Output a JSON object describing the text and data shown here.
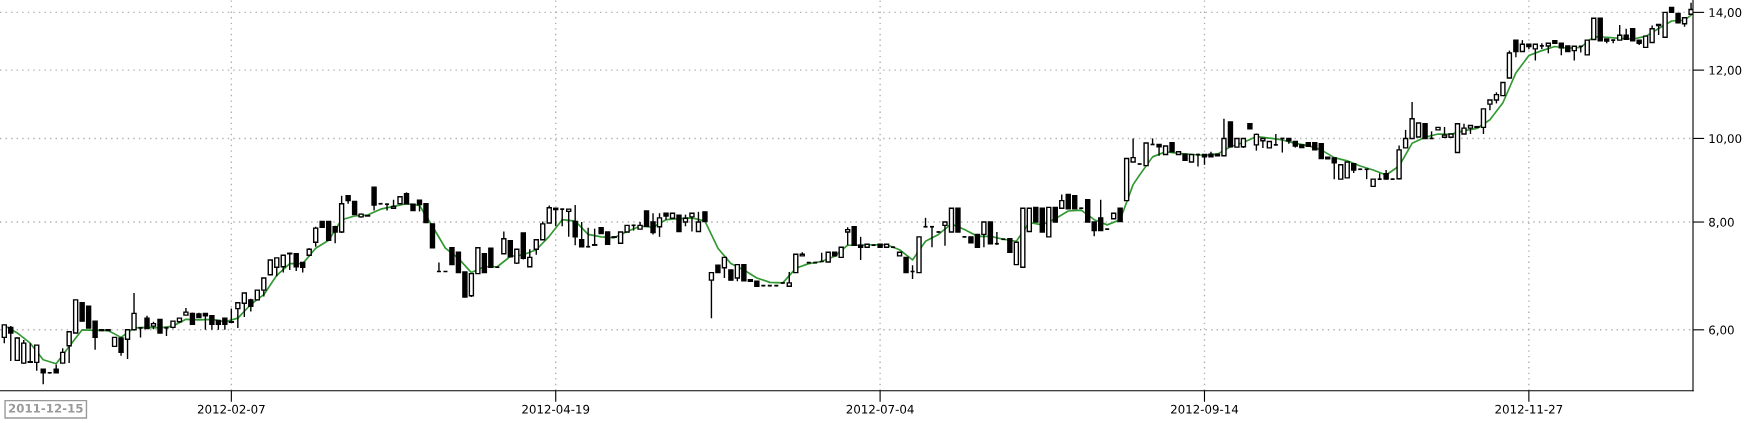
{
  "chart_data": {
    "type": "candlestick",
    "log": "y",
    "grid": true,
    "categories": [
      null,
      null,
      null,
      null,
      null,
      null,
      null,
      null,
      null,
      null,
      null,
      null,
      null,
      null,
      null,
      null,
      null,
      null,
      null,
      null,
      null,
      null,
      null,
      null,
      null,
      null,
      null,
      null,
      null,
      null,
      null,
      null,
      null,
      null,
      null,
      "2012-02-07",
      null,
      null,
      null,
      null,
      null,
      null,
      null,
      null,
      null,
      null,
      null,
      null,
      null,
      null,
      null,
      null,
      null,
      null,
      null,
      null,
      null,
      null,
      null,
      null,
      null,
      null,
      null,
      null,
      null,
      null,
      null,
      null,
      null,
      null,
      null,
      null,
      null,
      null,
      null,
      null,
      null,
      null,
      null,
      null,
      null,
      null,
      null,
      null,
      null,
      "2012-04-19",
      null,
      null,
      null,
      null,
      null,
      null,
      null,
      null,
      null,
      null,
      null,
      null,
      null,
      null,
      null,
      null,
      null,
      null,
      null,
      null,
      null,
      null,
      null,
      null,
      null,
      null,
      null,
      null,
      null,
      null,
      null,
      null,
      null,
      null,
      null,
      null,
      null,
      null,
      null,
      null,
      null,
      null,
      null,
      null,
      null,
      null,
      null,
      null,
      null,
      "2012-07-04",
      null,
      null,
      null,
      null,
      null,
      null,
      null,
      null,
      null,
      null,
      null,
      null,
      null,
      null,
      null,
      null,
      null,
      null,
      null,
      null,
      null,
      null,
      null,
      null,
      null,
      null,
      null,
      null,
      null,
      null,
      null,
      null,
      null,
      null,
      null,
      null,
      null,
      null,
      null,
      null,
      null,
      null,
      null,
      null,
      null,
      null,
      null,
      null,
      null,
      "2012-09-14",
      null,
      null,
      null,
      null,
      null,
      null,
      null,
      null,
      null,
      null,
      null,
      null,
      null,
      null,
      null,
      null,
      null,
      null,
      null,
      null,
      null,
      null,
      null,
      null,
      null,
      null,
      null,
      null,
      null,
      null,
      null,
      null,
      null,
      null,
      null,
      null,
      null,
      null,
      null,
      null,
      null,
      null,
      null,
      null,
      null,
      null,
      null,
      null,
      null,
      "2012-11-27",
      null,
      null,
      null,
      null,
      null,
      null,
      null,
      null,
      null,
      null,
      null,
      null,
      null,
      null,
      null,
      null,
      null,
      null,
      null,
      null,
      null,
      null,
      null,
      null,
      null
    ],
    "ylim": [
      5.1,
      14.47
    ],
    "yticks": [
      {
        "value": 6,
        "label": "6,00"
      },
      {
        "value": 8,
        "label": "8,00"
      },
      {
        "value": 10,
        "label": "10,00"
      },
      {
        "value": 12,
        "label": "12,00"
      },
      {
        "value": 14,
        "label": "14,00"
      }
    ],
    "annotations": [
      "2011-12-15"
    ],
    "series": [
      {
        "color": "#000000",
        "ohlc": [
          [
            5.88,
            6.08,
            5.79,
            6.08
          ],
          [
            6.04,
            6.06,
            5.52,
            5.95
          ],
          [
            5.53,
            5.88,
            5.52,
            5.87
          ],
          [
            5.49,
            5.84,
            5.48,
            5.79
          ],
          [
            5.5,
            5.79,
            5.49,
            5.51
          ],
          [
            5.5,
            5.76,
            5.38,
            5.76
          ],
          [
            5.4,
            5.4,
            5.19,
            5.35
          ],
          [
            5.35,
            5.36,
            5.34,
            5.35
          ],
          [
            5.4,
            5.47,
            5.35,
            5.35
          ],
          [
            5.49,
            5.71,
            5.49,
            5.65
          ],
          [
            5.75,
            5.97,
            5.49,
            5.97
          ],
          [
            5.95,
            6.5,
            5.95,
            6.5
          ],
          [
            6.45,
            6.45,
            6.14,
            6.14
          ],
          [
            6.39,
            6.39,
            6.03,
            6.03
          ],
          [
            6.14,
            6.14,
            5.69,
            5.88
          ],
          [
            6.0,
            6.0,
            5.99,
            5.99
          ],
          [
            5.99,
            6.0,
            5.99,
            6.0
          ],
          [
            5.74,
            5.88,
            5.74,
            5.88
          ],
          [
            5.87,
            5.87,
            5.6,
            5.65
          ],
          [
            5.85,
            6.0,
            5.55,
            6.0
          ],
          [
            6.0,
            6.62,
            6.0,
            6.27
          ],
          [
            6.03,
            6.04,
            5.88,
            6.03
          ],
          [
            6.19,
            6.23,
            6.02,
            6.02
          ],
          [
            6.06,
            6.13,
            6.01,
            6.1
          ],
          [
            6.17,
            6.17,
            5.95,
            5.95
          ],
          [
            6.03,
            6.04,
            5.9,
            6.03
          ],
          [
            6.04,
            6.14,
            6.02,
            6.14
          ],
          [
            6.13,
            6.19,
            6.12,
            6.19
          ],
          [
            6.24,
            6.36,
            6.24,
            6.29
          ],
          [
            6.27,
            6.28,
            6.09,
            6.09
          ],
          [
            6.26,
            6.28,
            6.2,
            6.2
          ],
          [
            6.27,
            6.27,
            6.0,
            6.23
          ],
          [
            6.23,
            6.23,
            6.0,
            6.09
          ],
          [
            6.15,
            6.15,
            6.0,
            6.09
          ],
          [
            6.19,
            6.19,
            6.0,
            6.09
          ],
          [
            6.12,
            6.35,
            6.12,
            6.13
          ],
          [
            6.35,
            6.45,
            6.03,
            6.45
          ],
          [
            6.44,
            6.62,
            6.21,
            6.62
          ],
          [
            6.5,
            6.52,
            6.3,
            6.39
          ],
          [
            6.5,
            6.67,
            6.5,
            6.67
          ],
          [
            6.67,
            6.89,
            6.56,
            6.89
          ],
          [
            6.95,
            7.23,
            6.95,
            7.23
          ],
          [
            7.09,
            7.27,
            6.92,
            7.27
          ],
          [
            7.1,
            7.32,
            6.99,
            7.32
          ],
          [
            7.36,
            7.37,
            7.04,
            7.35
          ],
          [
            7.35,
            7.35,
            7.02,
            7.1
          ],
          [
            7.18,
            7.18,
            6.99,
            7.09
          ],
          [
            7.32,
            7.46,
            7.3,
            7.44
          ],
          [
            7.58,
            7.9,
            7.49,
            7.87
          ],
          [
            8.01,
            8.01,
            7.89,
            7.89
          ],
          [
            8.01,
            8.01,
            7.62,
            7.62
          ],
          [
            7.9,
            7.92,
            7.56,
            7.79
          ],
          [
            7.79,
            8.58,
            7.77,
            8.4
          ],
          [
            8.58,
            8.58,
            8.4,
            8.47
          ],
          [
            8.45,
            8.45,
            8.16,
            8.16
          ],
          [
            8.11,
            8.18,
            8.1,
            8.17
          ],
          [
            8.14,
            8.15,
            8.13,
            8.13
          ],
          [
            8.78,
            8.78,
            8.25,
            8.37
          ],
          [
            8.4,
            8.41,
            8.39,
            8.4
          ],
          [
            8.39,
            8.4,
            8.25,
            8.39
          ],
          [
            8.3,
            8.49,
            8.3,
            8.34
          ],
          [
            8.4,
            8.57,
            8.4,
            8.56
          ],
          [
            8.63,
            8.66,
            8.4,
            8.4
          ],
          [
            8.39,
            8.39,
            8.25,
            8.25
          ],
          [
            8.48,
            8.48,
            8.23,
            8.38
          ],
          [
            8.4,
            8.4,
            7.99,
            7.99
          ],
          [
            7.96,
            7.96,
            7.47,
            7.47
          ],
          [
            7.01,
            7.18,
            7.0,
            7.01
          ],
          [
            7.01,
            7.02,
            7.0,
            7.01
          ],
          [
            7.47,
            7.47,
            7.14,
            7.14
          ],
          [
            7.38,
            7.38,
            6.99,
            6.99
          ],
          [
            7.0,
            7.0,
            6.55,
            6.55
          ],
          [
            6.57,
            6.97,
            6.55,
            6.97
          ],
          [
            6.97,
            7.47,
            6.97,
            7.47
          ],
          [
            7.35,
            7.35,
            6.99,
            6.99
          ],
          [
            7.46,
            7.46,
            7.09,
            7.09
          ],
          [
            7.09,
            7.1,
            7.08,
            7.09
          ],
          [
            7.35,
            7.8,
            7.35,
            7.65
          ],
          [
            7.61,
            7.61,
            7.29,
            7.29
          ],
          [
            7.17,
            7.44,
            7.15,
            7.44
          ],
          [
            7.77,
            7.77,
            7.24,
            7.26
          ],
          [
            7.1,
            7.44,
            7.1,
            7.28
          ],
          [
            7.44,
            7.63,
            7.33,
            7.63
          ],
          [
            7.63,
            8.01,
            7.63,
            7.96
          ],
          [
            7.98,
            8.36,
            7.98,
            8.31
          ],
          [
            8.3,
            8.3,
            7.91,
            8.27
          ],
          [
            8.28,
            8.29,
            7.91,
            8.28
          ],
          [
            8.23,
            8.28,
            7.69,
            8.28
          ],
          [
            8.01,
            8.37,
            7.52,
            7.69
          ],
          [
            7.63,
            8.0,
            7.49,
            7.49
          ],
          [
            7.49,
            7.88,
            7.48,
            7.49
          ],
          [
            7.53,
            7.86,
            7.52,
            7.52
          ],
          [
            7.88,
            7.89,
            7.76,
            7.76
          ],
          [
            7.79,
            7.79,
            7.54,
            7.54
          ],
          [
            7.69,
            7.69,
            7.68,
            7.68
          ],
          [
            7.56,
            7.79,
            7.56,
            7.79
          ],
          [
            7.79,
            7.93,
            7.79,
            7.93
          ],
          [
            7.93,
            7.94,
            7.82,
            7.93
          ],
          [
            7.85,
            8.0,
            7.85,
            7.93
          ],
          [
            8.24,
            8.24,
            7.91,
            7.91
          ],
          [
            8.0,
            8.19,
            7.74,
            7.78
          ],
          [
            7.9,
            8.19,
            7.69,
            8.09
          ],
          [
            8.19,
            8.19,
            8.05,
            8.13
          ],
          [
            8.08,
            8.19,
            8.08,
            8.19
          ],
          [
            8.15,
            8.15,
            7.8,
            7.8
          ],
          [
            8.0,
            8.16,
            7.91,
            8.08
          ],
          [
            8.11,
            8.19,
            7.8,
            8.19
          ],
          [
            7.8,
            8.22,
            7.8,
            8.0
          ],
          [
            8.22,
            8.22,
            8.01,
            8.01
          ],
          [
            6.85,
            6.99,
            6.19,
            6.99
          ],
          [
            7.13,
            7.13,
            6.99,
            6.99
          ],
          [
            7.08,
            7.28,
            6.89,
            7.28
          ],
          [
            7.04,
            7.04,
            6.85,
            6.85
          ],
          [
            6.89,
            7.14,
            6.83,
            7.14
          ],
          [
            7.14,
            7.14,
            6.84,
            6.84
          ],
          [
            6.86,
            6.86,
            6.83,
            6.83
          ],
          [
            6.83,
            6.83,
            6.74,
            6.74
          ],
          [
            6.75,
            6.76,
            6.74,
            6.75
          ],
          [
            6.75,
            6.76,
            6.74,
            6.75
          ],
          [
            6.75,
            6.76,
            6.74,
            6.75
          ],
          [
            6.8,
            6.81,
            6.79,
            6.8
          ],
          [
            6.74,
            7.0,
            6.74,
            6.8
          ],
          [
            6.99,
            7.34,
            6.99,
            7.34
          ],
          [
            7.31,
            7.38,
            7.31,
            7.34
          ],
          [
            7.18,
            7.19,
            7.17,
            7.18
          ],
          [
            7.18,
            7.19,
            7.17,
            7.18
          ],
          [
            7.2,
            7.37,
            7.19,
            7.2
          ],
          [
            7.19,
            7.38,
            7.19,
            7.38
          ],
          [
            7.38,
            7.38,
            7.31,
            7.31
          ],
          [
            7.28,
            7.48,
            7.28,
            7.48
          ],
          [
            7.79,
            7.89,
            7.52,
            7.84
          ],
          [
            7.9,
            7.9,
            7.52,
            7.52
          ],
          [
            7.52,
            7.69,
            7.23,
            7.48
          ],
          [
            7.48,
            7.54,
            7.48,
            7.54
          ],
          [
            7.52,
            7.53,
            7.51,
            7.52
          ],
          [
            7.54,
            7.54,
            7.48,
            7.48
          ],
          [
            7.48,
            7.54,
            7.48,
            7.54
          ],
          [
            7.48,
            7.49,
            7.47,
            7.48
          ],
          [
            7.31,
            7.38,
            7.31,
            7.38
          ],
          [
            7.28,
            7.28,
            6.99,
            6.99
          ],
          [
            7.01,
            7.13,
            6.87,
            7.01
          ],
          [
            6.99,
            7.69,
            6.99,
            7.69
          ],
          [
            7.9,
            8.09,
            7.89,
            7.9
          ],
          [
            7.9,
            7.91,
            7.48,
            7.9
          ],
          [
            7.79,
            7.8,
            7.78,
            7.79
          ],
          [
            7.93,
            8.0,
            7.51,
            8.0
          ],
          [
            7.79,
            8.3,
            7.79,
            8.3
          ],
          [
            8.3,
            8.3,
            7.79,
            7.79
          ],
          [
            7.69,
            7.7,
            7.68,
            7.69
          ],
          [
            7.69,
            7.69,
            7.57,
            7.57
          ],
          [
            7.74,
            7.74,
            7.48,
            7.48
          ],
          [
            7.74,
            8.0,
            7.48,
            8.0
          ],
          [
            8.0,
            8.0,
            7.55,
            7.55
          ],
          [
            7.55,
            7.79,
            7.53,
            7.55
          ],
          [
            7.64,
            7.65,
            7.63,
            7.64
          ],
          [
            7.65,
            7.65,
            7.38,
            7.38
          ],
          [
            7.14,
            7.58,
            7.14,
            7.58
          ],
          [
            7.09,
            8.3,
            7.09,
            8.3
          ],
          [
            7.8,
            8.3,
            7.8,
            8.3
          ],
          [
            8.32,
            8.32,
            8.0,
            8.0
          ],
          [
            8.3,
            8.3,
            7.79,
            7.79
          ],
          [
            7.69,
            8.32,
            7.69,
            8.32
          ],
          [
            8.32,
            8.32,
            8.0,
            8.0
          ],
          [
            8.3,
            8.61,
            8.3,
            8.47
          ],
          [
            8.61,
            8.61,
            8.29,
            8.29
          ],
          [
            8.58,
            8.58,
            8.29,
            8.29
          ],
          [
            8.3,
            8.31,
            8.29,
            8.3
          ],
          [
            8.49,
            8.49,
            8.0,
            8.0
          ],
          [
            8.0,
            8.0,
            7.7,
            7.82
          ],
          [
            8.09,
            8.49,
            7.82,
            7.82
          ],
          [
            7.85,
            7.86,
            7.84,
            7.85
          ],
          [
            8.07,
            8.19,
            8.07,
            8.19
          ],
          [
            8.3,
            8.3,
            8.01,
            8.01
          ],
          [
            8.47,
            9.48,
            8.47,
            9.48
          ],
          [
            9.39,
            10.0,
            9.39,
            9.5
          ],
          [
            9.34,
            9.35,
            9.33,
            9.34
          ],
          [
            9.3,
            9.88,
            9.29,
            9.88
          ],
          [
            9.84,
            10.0,
            9.83,
            9.84
          ],
          [
            9.84,
            9.84,
            9.55,
            9.78
          ],
          [
            9.58,
            9.8,
            9.58,
            9.8
          ],
          [
            9.89,
            9.89,
            9.65,
            9.65
          ],
          [
            9.58,
            9.65,
            9.58,
            9.65
          ],
          [
            9.59,
            9.59,
            9.43,
            9.43
          ],
          [
            9.39,
            9.58,
            9.39,
            9.58
          ],
          [
            9.58,
            9.59,
            9.28,
            9.58
          ],
          [
            9.58,
            9.58,
            9.32,
            9.52
          ],
          [
            9.59,
            9.65,
            9.52,
            9.52
          ],
          [
            9.59,
            9.59,
            9.55,
            9.55
          ],
          [
            9.55,
            10.54,
            9.55,
            10.0
          ],
          [
            10.45,
            10.45,
            9.78,
            9.78
          ],
          [
            9.77,
            10.0,
            9.77,
            10.0
          ],
          [
            9.78,
            10.0,
            9.75,
            10.0
          ],
          [
            10.4,
            10.4,
            10.26,
            10.26
          ],
          [
            9.83,
            10.13,
            9.68,
            10.11
          ],
          [
            9.94,
            10.0,
            9.75,
            10.0
          ],
          [
            9.75,
            9.92,
            9.75,
            9.92
          ],
          [
            9.83,
            10.12,
            9.82,
            9.83
          ],
          [
            10.0,
            10.01,
            9.63,
            10.0
          ],
          [
            10.0,
            10.0,
            9.86,
            9.94
          ],
          [
            9.92,
            9.92,
            9.76,
            9.8
          ],
          [
            9.83,
            9.83,
            9.76,
            9.76
          ],
          [
            9.89,
            9.89,
            9.79,
            9.79
          ],
          [
            9.89,
            9.89,
            9.7,
            9.7
          ],
          [
            9.86,
            9.86,
            9.48,
            9.48
          ],
          [
            9.51,
            9.51,
            9.47,
            9.47
          ],
          [
            9.49,
            9.49,
            8.97,
            9.37
          ],
          [
            8.97,
            9.32,
            8.97,
            9.32
          ],
          [
            9.0,
            9.39,
            9.0,
            9.39
          ],
          [
            9.35,
            9.35,
            9.12,
            9.19
          ],
          [
            9.21,
            9.22,
            9.2,
            9.21
          ],
          [
            9.21,
            9.22,
            8.97,
            9.21
          ],
          [
            8.8,
            8.97,
            8.8,
            8.97
          ],
          [
            8.97,
            9.11,
            8.96,
            8.97
          ],
          [
            9.1,
            9.19,
            8.97,
            8.97
          ],
          [
            8.97,
            8.98,
            8.96,
            8.97
          ],
          [
            8.98,
            9.81,
            8.97,
            9.7
          ],
          [
            9.75,
            10.23,
            9.75,
            10.0
          ],
          [
            10.0,
            11.02,
            10.0,
            10.54
          ],
          [
            10.04,
            10.42,
            10.04,
            10.42
          ],
          [
            10.4,
            10.4,
            10.0,
            10.0
          ],
          [
            10.0,
            10.19,
            9.99,
            10.0
          ],
          [
            10.23,
            10.3,
            10.23,
            10.3
          ],
          [
            10.03,
            10.31,
            10.03,
            10.09
          ],
          [
            10.03,
            10.12,
            10.03,
            10.12
          ],
          [
            9.63,
            10.4,
            9.63,
            10.4
          ],
          [
            10.12,
            10.4,
            10.12,
            10.28
          ],
          [
            10.28,
            10.35,
            10.12,
            10.35
          ],
          [
            10.3,
            10.33,
            10.29,
            10.32
          ],
          [
            10.3,
            10.82,
            10.12,
            10.82
          ],
          [
            10.96,
            11.08,
            10.78,
            11.08
          ],
          [
            11.08,
            11.31,
            10.98,
            11.24
          ],
          [
            11.21,
            11.61,
            11.21,
            11.61
          ],
          [
            11.75,
            12.64,
            11.75,
            12.56
          ],
          [
            13.0,
            13.0,
            12.42,
            12.61
          ],
          [
            12.61,
            13.0,
            12.61,
            12.86
          ],
          [
            12.86,
            12.86,
            12.69,
            12.78
          ],
          [
            12.7,
            12.86,
            12.31,
            12.86
          ],
          [
            12.8,
            12.89,
            12.7,
            12.8
          ],
          [
            12.8,
            12.89,
            12.55,
            12.89
          ],
          [
            12.98,
            12.98,
            12.89,
            12.89
          ],
          [
            12.89,
            12.89,
            12.49,
            12.74
          ],
          [
            12.8,
            12.8,
            12.61,
            12.61
          ],
          [
            12.64,
            12.79,
            12.31,
            12.79
          ],
          [
            12.79,
            12.8,
            12.58,
            12.79
          ],
          [
            12.5,
            13.0,
            12.5,
            13.0
          ],
          [
            13.02,
            13.78,
            13.02,
            13.78
          ],
          [
            13.78,
            13.78,
            12.98,
            12.98
          ],
          [
            13.04,
            13.04,
            12.89,
            12.97
          ],
          [
            13.0,
            13.01,
            12.89,
            13.0
          ],
          [
            13.0,
            13.54,
            13.0,
            13.17
          ],
          [
            13.17,
            13.4,
            13.03,
            13.03
          ],
          [
            13.4,
            13.4,
            12.98,
            12.98
          ],
          [
            13.0,
            13.0,
            12.83,
            12.89
          ],
          [
            12.75,
            13.14,
            12.75,
            13.14
          ],
          [
            12.92,
            13.52,
            12.92,
            13.4
          ],
          [
            13.56,
            13.56,
            13.18,
            13.52
          ],
          [
            13.1,
            14.0,
            13.1,
            14.0
          ],
          [
            14.19,
            14.19,
            14.0,
            14.0
          ],
          [
            13.96,
            13.96,
            13.62,
            13.62
          ],
          [
            13.58,
            13.8,
            13.47,
            13.8
          ],
          [
            13.93,
            14.36,
            13.93,
            14.11
          ]
        ]
      },
      {
        "type": "line",
        "color": "#339933",
        "values": [
          6.07,
          null,
          5.95,
          null,
          5.79,
          null,
          5.54,
          null,
          5.48,
          null,
          5.74,
          null,
          6.0,
          null,
          5.99,
          null,
          5.99,
          null,
          5.88,
          null,
          6.03,
          null,
          6.04,
          null,
          6.03,
          null,
          6.06,
          null,
          6.17,
          null,
          6.16,
          null,
          6.17,
          null,
          6.13,
          null,
          6.19,
          null,
          6.42,
          null,
          6.59,
          null,
          6.94,
          null,
          7.16,
          null,
          7.16,
          null,
          7.46,
          null,
          7.62,
          null,
          8.05,
          null,
          8.13,
          null,
          8.15,
          null,
          8.28,
          null,
          8.34,
          null,
          8.4,
          null,
          8.36,
          null,
          7.91,
          null,
          7.46,
          null,
          7.26,
          null,
          6.99,
          null,
          7.1,
          null,
          7.1,
          null,
          7.3,
          null,
          7.33,
          null,
          7.43,
          null,
          7.7,
          null,
          8.05,
          null,
          8.02,
          null,
          7.74,
          null,
          7.69,
          null,
          7.67,
          null,
          7.8,
          null,
          7.91,
          null,
          7.89,
          null,
          8.05,
          null,
          8.07,
          null,
          8.09,
          null,
          8.02,
          null,
          7.46,
          null,
          7.16,
          null,
          7.04,
          null,
          6.89,
          null,
          6.81,
          null,
          6.8,
          null,
          7.07,
          null,
          7.16,
          null,
          7.2,
          null,
          7.3,
          null,
          7.52,
          7.52,
          7.52,
          null,
          7.53,
          null,
          7.53,
          null,
          7.43,
          null,
          7.23,
          null,
          7.6,
          null,
          7.74,
          null,
          7.96,
          null,
          7.84,
          null,
          7.7,
          null,
          7.7,
          null,
          7.64,
          null,
          7.6,
          null,
          7.99,
          null,
          7.94,
          null,
          8.07,
          null,
          8.24,
          null,
          8.26,
          null,
          8.05,
          null,
          7.94,
          null,
          8.05,
          null,
          8.84,
          9.07,
          null,
          9.52,
          null,
          9.65,
          null,
          9.61,
          null,
          9.58,
          null,
          9.56,
          null,
          9.59,
          null,
          9.78,
          null,
          9.89,
          null,
          10.05,
          null,
          10.01,
          null,
          9.96,
          null,
          9.87,
          null,
          9.81,
          null,
          9.7,
          null,
          9.5,
          null,
          9.42,
          null,
          9.29,
          null,
          9.19,
          null,
          9.07,
          null,
          9.29,
          null,
          9.87,
          null,
          10.03,
          null,
          10.12,
          null,
          10.11,
          null,
          10.21,
          null,
          10.27,
          null,
          10.51,
          null,
          11.0,
          null,
          11.91,
          null,
          12.48,
          null,
          12.64,
          null,
          12.78,
          null,
          12.72,
          null,
          12.75,
          null,
          13.12,
          null,
          13.1,
          null,
          13.06,
          null,
          13.04,
          null,
          13.13,
          null,
          13.41,
          null,
          13.68,
          null,
          13.71,
          13.9
        ]
      }
    ]
  }
}
